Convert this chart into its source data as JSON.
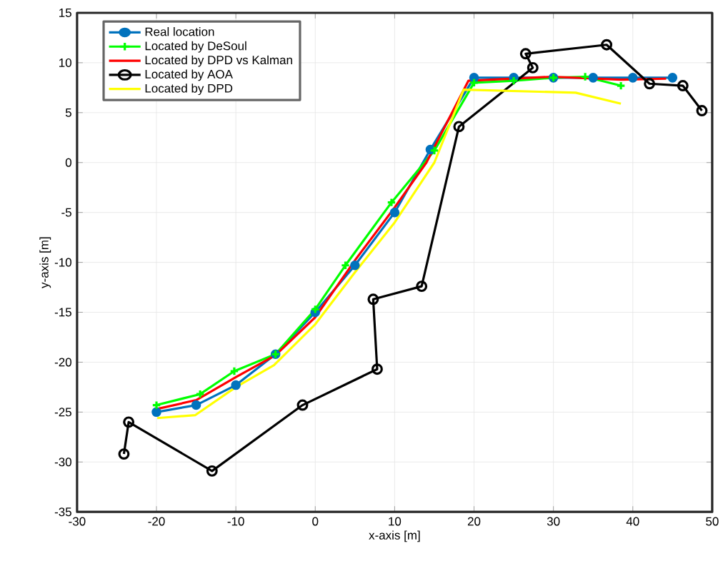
{
  "chart_data": {
    "type": "line",
    "xlabel": "x-axis [m]",
    "ylabel": "y-axis [m]",
    "xlim": [
      -30,
      50
    ],
    "ylim": [
      -35,
      15
    ],
    "xticks": [
      -30,
      -20,
      -10,
      0,
      10,
      20,
      30,
      40,
      50
    ],
    "yticks": [
      -35,
      -30,
      -25,
      -20,
      -15,
      -10,
      -5,
      0,
      5,
      10,
      15
    ],
    "grid": true,
    "legend": "top left",
    "series": [
      {
        "name": "Real location",
        "color": "#0072bd",
        "marker": "circle",
        "x": [
          -20,
          -15,
          -10,
          -5,
          0,
          5,
          10,
          14.5,
          20,
          25,
          30,
          35,
          40,
          45
        ],
        "values": [
          -25,
          -24.3,
          -22.3,
          -19.2,
          -15,
          -10.3,
          -5,
          1.3,
          8.5,
          8.5,
          8.5,
          8.5,
          8.5,
          8.5
        ]
      },
      {
        "name": "Located by DeSoul",
        "color": "#00ff00",
        "marker": "cross",
        "x": [
          -20,
          -14.5,
          -10.2,
          -5,
          0,
          3.8,
          9.6,
          15,
          20,
          25,
          30,
          34,
          38.5
        ],
        "values": [
          -24.3,
          -23.2,
          -20.9,
          -19.2,
          -14.7,
          -10.3,
          -4,
          1.2,
          8,
          8.2,
          8.5,
          8.6,
          7.7
        ]
      },
      {
        "name": "Located by DPD vs Kalman",
        "color": "#ff0000",
        "marker": "none",
        "x": [
          -20,
          -15,
          -10,
          -5,
          0,
          5,
          10,
          14,
          19.3,
          29.8,
          38.5,
          44.2
        ],
        "values": [
          -24.7,
          -23.8,
          -21.5,
          -19.3,
          -15.5,
          -9.8,
          -4.5,
          0,
          8.2,
          8.6,
          8.3,
          8.4
        ]
      },
      {
        "name": "Located by AOA",
        "color": "#000000",
        "marker": "open circle",
        "x": [
          -24.1,
          -23.5,
          -13,
          -1.6,
          7.8,
          7.3,
          13.4,
          18.1,
          27.4,
          26.5,
          36.7,
          42.1,
          46.3,
          48.7
        ],
        "values": [
          -29.2,
          -26,
          -30.9,
          -24.3,
          -20.7,
          -13.7,
          -12.4,
          3.6,
          9.5,
          10.9,
          11.8,
          7.9,
          7.7,
          5.2
        ]
      },
      {
        "name": "Located by DPD",
        "color": "#ffff00",
        "marker": "none",
        "x": [
          -19.9,
          -15.1,
          -10,
          -5.2,
          0,
          5,
          10,
          15,
          18.7,
          32.8,
          38.5
        ],
        "values": [
          -25.6,
          -25.3,
          -22.5,
          -20.3,
          -16.2,
          -11,
          -6,
          0,
          7.3,
          7,
          5.9
        ]
      }
    ]
  }
}
